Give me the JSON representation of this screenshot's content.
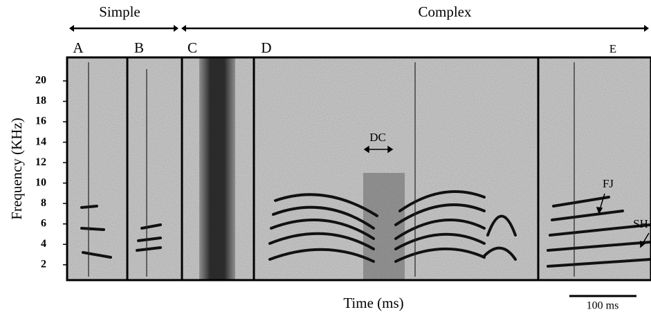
{
  "chart_data": {
    "type": "spectrogram",
    "ylabel": "Frequency (KHz)",
    "xlabel": "Time (ms)",
    "ylim": [
      0.5,
      22.3
    ],
    "yticks": [
      2,
      4,
      6,
      8,
      10,
      12,
      14,
      16,
      18,
      20
    ],
    "groups": [
      "Simple",
      "Complex"
    ],
    "panels": [
      "A",
      "B",
      "C",
      "D",
      "E"
    ],
    "annotations": [
      "DC",
      "FJ",
      "SH"
    ],
    "scale_bar": "100 ms"
  }
}
